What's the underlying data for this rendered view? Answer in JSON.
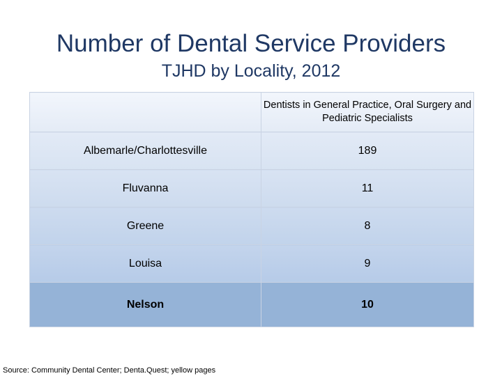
{
  "slide": {
    "title": "Number of Dental Service Providers",
    "subtitle": "TJHD by Locality, 2012",
    "source": "Source: Community Dental Center; Denta.Quest; yellow pages"
  },
  "table": {
    "header": {
      "locality": "",
      "count": "Dentists in General Practice, Oral Surgery and Pediatric Specialists"
    },
    "rows": [
      {
        "locality": "Albemarle/Charlottesville",
        "count": "189"
      },
      {
        "locality": "Fluvanna",
        "count": "11"
      },
      {
        "locality": "Greene",
        "count": "8"
      },
      {
        "locality": "Louisa",
        "count": "9"
      },
      {
        "locality": "Nelson",
        "count": "10"
      }
    ]
  }
}
